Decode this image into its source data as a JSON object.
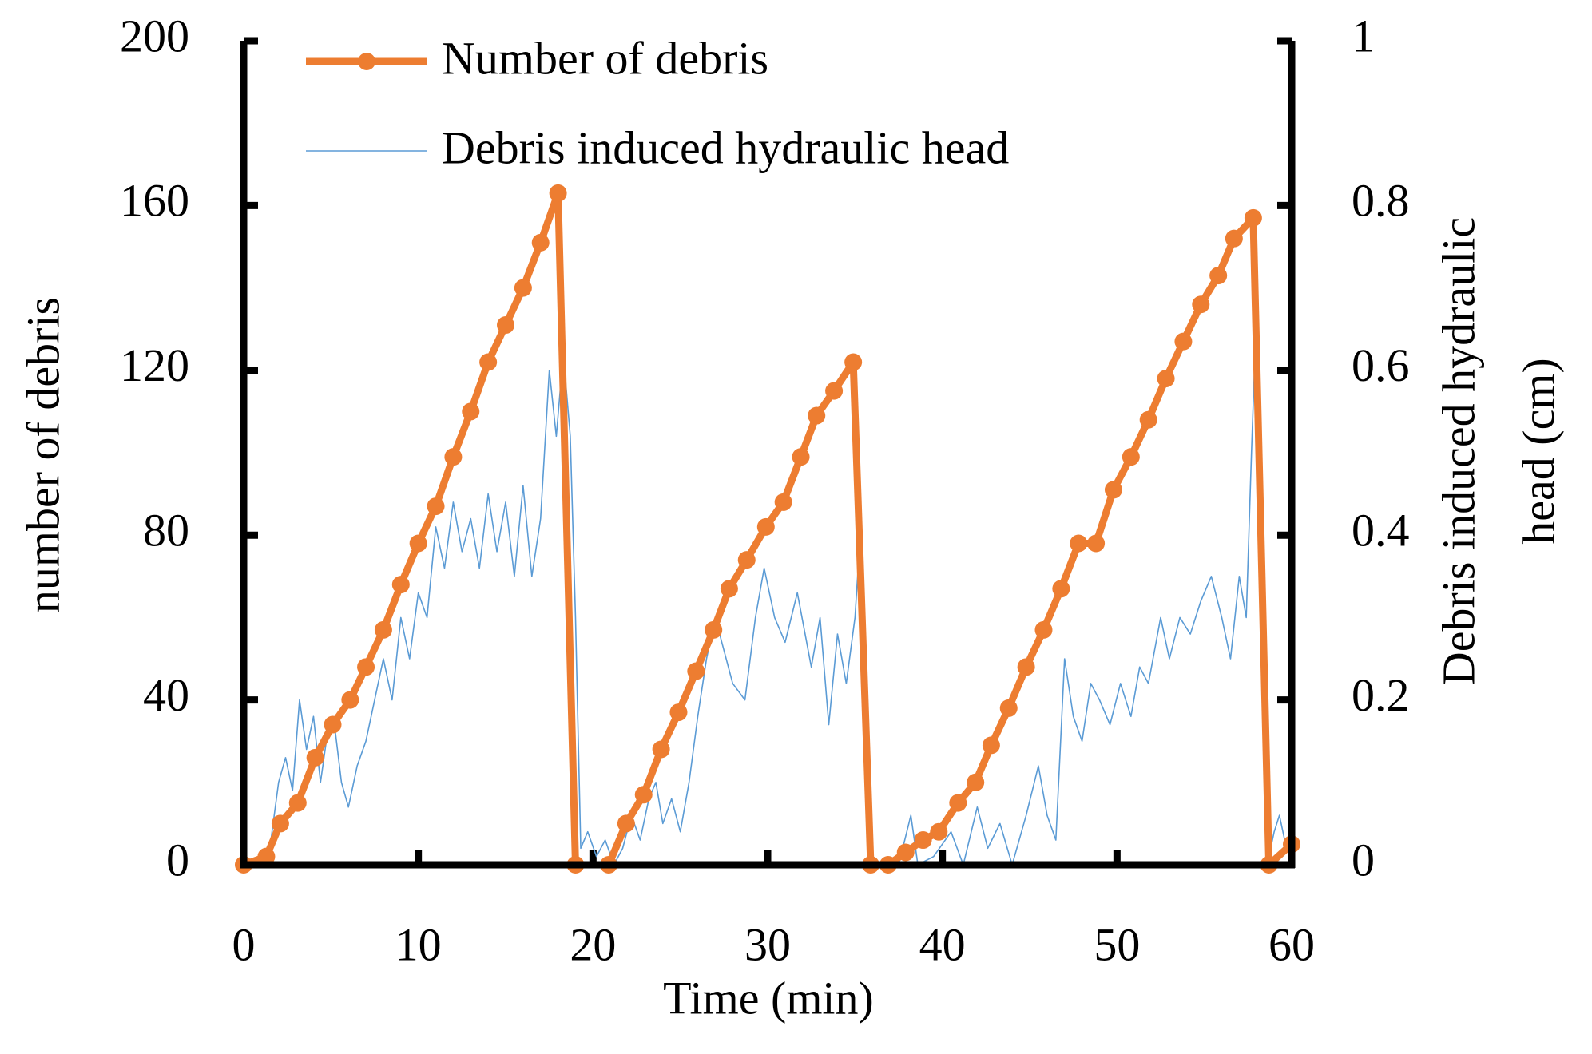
{
  "chart_data": {
    "type": "line",
    "xlabel": "Time (min)",
    "ylabel": "number of debris",
    "y2label": [
      "Debris  induced hydraulic",
      "head (cm)"
    ],
    "xlim": [
      0,
      60
    ],
    "xticks": [
      0,
      10,
      20,
      30,
      40,
      50,
      60
    ],
    "ylim": [
      0,
      200
    ],
    "yticks": [
      0,
      40,
      80,
      120,
      160,
      200
    ],
    "y2lim": [
      0,
      1
    ],
    "y2ticks": [
      0,
      0.2,
      0.4,
      0.6,
      0.8,
      1
    ],
    "grid": false,
    "legend": "upper left",
    "series": [
      {
        "name": "Number of debris",
        "color": "#ed7d31",
        "markers": true,
        "x": [
          0,
          1.3,
          2.1,
          3.1,
          4.1,
          5.1,
          6.1,
          7.0,
          8.0,
          9.0,
          10.0,
          11.0,
          12.0,
          13.0,
          14.0,
          15.0,
          16.0,
          17.0,
          18.0,
          19.0,
          20.9,
          21.9,
          22.9,
          23.9,
          24.9,
          25.9,
          26.9,
          27.8,
          28.8,
          29.9,
          30.9,
          31.9,
          32.8,
          33.8,
          34.9,
          35.9,
          36.9,
          37.9,
          38.9,
          39.8,
          40.9,
          41.9,
          42.8,
          43.8,
          44.8,
          45.8,
          46.8,
          47.8,
          48.8,
          49.8,
          50.8,
          51.8,
          52.8,
          53.8,
          54.8,
          55.8,
          56.7,
          57.8,
          58.7,
          60
        ],
        "values": [
          0,
          2,
          10,
          15,
          26,
          34,
          40,
          48,
          57,
          68,
          78,
          87,
          99,
          110,
          122,
          131,
          140,
          151,
          163,
          0,
          0,
          10,
          17,
          28,
          37,
          47,
          57,
          67,
          74,
          82,
          88,
          99,
          109,
          115,
          122,
          0,
          0,
          3,
          6,
          8,
          15,
          20,
          29,
          38,
          48,
          57,
          67,
          78,
          78,
          91,
          99,
          108,
          118,
          127,
          136,
          143,
          152,
          157,
          0,
          5
        ]
      },
      {
        "name": "Debris induced hydraulic head",
        "color": "#5b9bd5",
        "axis": "y2",
        "markers": false,
        "x": [
          1.0,
          1.5,
          2.0,
          2.4,
          2.8,
          3.2,
          3.6,
          4.0,
          4.4,
          4.8,
          5.2,
          5.6,
          6.0,
          6.5,
          7.0,
          7.5,
          8.0,
          8.5,
          9.0,
          9.5,
          10.0,
          10.5,
          11.0,
          11.5,
          12.0,
          12.5,
          13.0,
          13.5,
          14.0,
          14.5,
          15.0,
          15.5,
          16.0,
          16.5,
          17.0,
          17.5,
          17.9,
          18.3,
          18.7,
          19.0,
          19.3,
          19.7,
          20.2,
          20.7,
          21.2,
          21.7,
          22.2,
          22.7,
          23.2,
          23.6,
          24.0,
          24.5,
          25.0,
          25.5,
          26.0,
          26.5,
          27.0,
          27.5,
          28.0,
          28.7,
          29.3,
          29.8,
          30.4,
          31.0,
          31.7,
          32.5,
          33.0,
          33.5,
          34.0,
          34.5,
          35.0,
          35.3,
          35.6,
          35.9,
          36.5,
          37.5,
          38.2,
          38.6,
          39.5,
          40.5,
          41.2,
          42.0,
          42.6,
          43.3,
          44.0,
          44.8,
          45.5,
          46.0,
          46.5,
          47.0,
          47.5,
          48.0,
          48.5,
          49.0,
          49.6,
          50.2,
          50.8,
          51.3,
          51.8,
          52.5,
          53.0,
          53.6,
          54.2,
          54.8,
          55.4,
          56.0,
          56.5,
          57.0,
          57.4,
          57.7,
          57.9,
          58.2,
          58.6,
          59.0,
          59.3,
          59.7,
          60.0
        ],
        "values": [
          0,
          0.02,
          0.1,
          0.13,
          0.09,
          0.2,
          0.14,
          0.18,
          0.1,
          0.16,
          0.17,
          0.1,
          0.07,
          0.12,
          0.15,
          0.2,
          0.25,
          0.2,
          0.3,
          0.25,
          0.33,
          0.3,
          0.41,
          0.36,
          0.44,
          0.38,
          0.42,
          0.36,
          0.45,
          0.38,
          0.44,
          0.35,
          0.46,
          0.35,
          0.42,
          0.6,
          0.52,
          0.62,
          0.52,
          0.3,
          0.02,
          0.04,
          0.01,
          0.03,
          0,
          0.02,
          0.06,
          0.03,
          0.08,
          0.1,
          0.05,
          0.08,
          0.04,
          0.1,
          0.18,
          0.25,
          0.3,
          0.26,
          0.22,
          0.2,
          0.3,
          0.36,
          0.3,
          0.27,
          0.33,
          0.24,
          0.3,
          0.17,
          0.28,
          0.22,
          0.3,
          0.4,
          0.25,
          0,
          0,
          0,
          0.06,
          0,
          0.01,
          0.04,
          0,
          0.07,
          0.02,
          0.05,
          0,
          0.06,
          0.12,
          0.06,
          0.03,
          0.25,
          0.18,
          0.15,
          0.22,
          0.2,
          0.17,
          0.22,
          0.18,
          0.24,
          0.22,
          0.3,
          0.25,
          0.3,
          0.28,
          0.32,
          0.35,
          0.3,
          0.25,
          0.35,
          0.3,
          0.5,
          0.62,
          0.4,
          0,
          0.04,
          0.06,
          0.02,
          0.03
        ]
      }
    ]
  }
}
